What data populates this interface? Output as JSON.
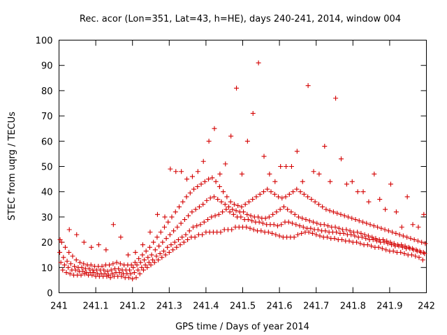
{
  "chart_data": {
    "type": "scatter",
    "title": "Rec. acor (Lon=351, Lat=43, h=HE), days 240-241, 2014, window 004",
    "xlabel": "GPS time / Days of year 2014",
    "ylabel": "STEC from uqrg / TECUs",
    "xlim": [
      241,
      242
    ],
    "ylim": [
      0,
      100
    ],
    "xticks": [
      241,
      241.1,
      241.2,
      241.3,
      241.4,
      241.5,
      241.6,
      241.7,
      241.8,
      241.9,
      242
    ],
    "xtick_labels": [
      "241",
      "241.1",
      "241.2",
      "241.3",
      "241.4",
      "241.5",
      "241.6",
      "241.7",
      "241.8",
      "241.9",
      "242"
    ],
    "yticks": [
      0,
      10,
      20,
      30,
      40,
      50,
      60,
      70,
      80,
      90,
      100
    ],
    "ytick_labels": [
      "0",
      "10",
      "20",
      "30",
      "40",
      "50",
      "60",
      "70",
      "80",
      "90",
      "100"
    ],
    "marker": "plus",
    "color": "#d40000",
    "grid": false,
    "series": [
      {
        "x": [
          241.01,
          241.02,
          241.03,
          241.04,
          241.05,
          241.06,
          241.07,
          241.08,
          241.09,
          241.1,
          241.11,
          241.12,
          241.13,
          241.14,
          241.15,
          241.16,
          241.17,
          241.18,
          241.19,
          241.2,
          241.21,
          241.22,
          241.23,
          241.24,
          241.25,
          241.26,
          241.27,
          241.28,
          241.29,
          241.3,
          241.31,
          241.32,
          241.33,
          241.34,
          241.35,
          241.36,
          241.37,
          241.38,
          241.39,
          241.4,
          241.41,
          241.42,
          241.43,
          241.44,
          241.45,
          241.46,
          241.47,
          241.48,
          241.49,
          241.5,
          241.51,
          241.52,
          241.53,
          241.54,
          241.55,
          241.56,
          241.57,
          241.58,
          241.59,
          241.6,
          241.61,
          241.62,
          241.63,
          241.64,
          241.65,
          241.66,
          241.67,
          241.68,
          241.69,
          241.7,
          241.71,
          241.72,
          241.73,
          241.74,
          241.75,
          241.76,
          241.77,
          241.78,
          241.79,
          241.8,
          241.81,
          241.82,
          241.83,
          241.84,
          241.85,
          241.86,
          241.87,
          241.88,
          241.89,
          241.9,
          241.91,
          241.92,
          241.93,
          241.94,
          241.95,
          241.96,
          241.97,
          241.98,
          241.99
        ],
        "y": [
          9,
          8,
          7.5,
          7,
          7,
          7,
          7.5,
          7,
          7,
          6.5,
          6.5,
          6.5,
          6.5,
          6,
          6.5,
          6.5,
          6.5,
          6,
          6,
          5.5,
          6,
          7.5,
          9,
          10,
          11,
          12,
          13,
          14,
          15,
          16,
          17,
          18,
          19,
          20,
          21,
          22,
          22,
          23,
          23,
          24,
          24,
          24,
          24,
          24,
          25,
          25,
          25,
          26,
          26,
          26,
          26,
          25.5,
          25,
          24.5,
          24.5,
          24,
          24,
          23.5,
          23,
          22.5,
          22,
          22,
          22,
          22,
          23,
          23.5,
          24,
          24,
          23.5,
          23,
          22.5,
          22,
          22,
          21.5,
          21.5,
          21,
          21,
          20.5,
          20.5,
          20,
          20,
          19.5,
          19,
          19,
          18.5,
          18,
          18,
          17.5,
          17,
          16.5,
          16.5,
          16,
          16,
          15.5,
          15,
          15,
          14.5,
          14,
          13
        ]
      },
      {
        "x": [
          241.005,
          241.015,
          241.025,
          241.035,
          241.045,
          241.055,
          241.065,
          241.075,
          241.085,
          241.095,
          241.105,
          241.115,
          241.125,
          241.135,
          241.145,
          241.155,
          241.165,
          241.175,
          241.185,
          241.195,
          241.205,
          241.215,
          241.225,
          241.235,
          241.245,
          241.255,
          241.265,
          241.275,
          241.285,
          241.295,
          241.305,
          241.315,
          241.325,
          241.335,
          241.345,
          241.355,
          241.365,
          241.375,
          241.385,
          241.395,
          241.405,
          241.415,
          241.425,
          241.435,
          241.445,
          241.455,
          241.465,
          241.475,
          241.485,
          241.495,
          241.505,
          241.515,
          241.525,
          241.535,
          241.545,
          241.555,
          241.565,
          241.575,
          241.585,
          241.595,
          241.605,
          241.615,
          241.625,
          241.635,
          241.645,
          241.655,
          241.665,
          241.675,
          241.685,
          241.695,
          241.705,
          241.715,
          241.725,
          241.735,
          241.745,
          241.755,
          241.765,
          241.775,
          241.785,
          241.795,
          241.805,
          241.815,
          241.825,
          241.835,
          241.845,
          241.855,
          241.865,
          241.875,
          241.885,
          241.895,
          241.905,
          241.915,
          241.925,
          241.935,
          241.945,
          241.955,
          241.965,
          241.975,
          241.985,
          241.995
        ],
        "y": [
          12,
          11,
          10,
          9,
          9,
          8.5,
          8.5,
          8,
          8,
          8,
          7.5,
          7.5,
          7.5,
          7,
          7.5,
          8,
          8,
          7.5,
          7.5,
          7.5,
          8,
          9,
          10,
          11,
          12,
          13,
          14.5,
          15.5,
          16.5,
          18,
          19,
          20,
          21,
          22,
          23,
          24.5,
          26,
          26.5,
          27,
          28,
          29,
          30,
          30.5,
          31,
          32,
          33,
          32,
          31,
          30,
          30,
          29,
          29,
          28.5,
          28,
          28,
          27.5,
          27,
          27,
          27,
          26.5,
          27,
          28,
          28,
          27.5,
          27,
          26.5,
          26,
          25.5,
          25.5,
          25,
          25,
          24.5,
          24.5,
          24,
          24,
          24,
          23.5,
          23.5,
          23,
          23,
          22.5,
          22,
          22,
          21.5,
          21,
          21,
          20.5,
          20,
          20,
          19.5,
          19,
          18.5,
          18.5,
          18,
          17.5,
          17.5,
          17,
          16.5,
          16,
          15.5
        ]
      },
      {
        "x": [
          241.002,
          241.012,
          241.022,
          241.032,
          241.042,
          241.052,
          241.062,
          241.072,
          241.082,
          241.092,
          241.102,
          241.112,
          241.122,
          241.132,
          241.142,
          241.152,
          241.162,
          241.172,
          241.182,
          241.192,
          241.202,
          241.212,
          241.222,
          241.232,
          241.242,
          241.252,
          241.262,
          241.272,
          241.282,
          241.292,
          241.302,
          241.312,
          241.322,
          241.332,
          241.342,
          241.352,
          241.362,
          241.372,
          241.382,
          241.392,
          241.402,
          241.412,
          241.422,
          241.432,
          241.442,
          241.452,
          241.462,
          241.472,
          241.482,
          241.492,
          241.502,
          241.512,
          241.522,
          241.532,
          241.542,
          241.552,
          241.562,
          241.572,
          241.582,
          241.592,
          241.602,
          241.612,
          241.622,
          241.632,
          241.642,
          241.652,
          241.662,
          241.672,
          241.682,
          241.692,
          241.702,
          241.712,
          241.722,
          241.732,
          241.742,
          241.752,
          241.762,
          241.772,
          241.782,
          241.792,
          241.802,
          241.812,
          241.822,
          241.832,
          241.842,
          241.852,
          241.862,
          241.872,
          241.882,
          241.892,
          241.902,
          241.912,
          241.922,
          241.932,
          241.942,
          241.952,
          241.962,
          241.972,
          241.982,
          241.992
        ],
        "y": [
          16,
          14,
          12.5,
          11.5,
          10.5,
          10,
          10,
          9.5,
          9.5,
          9,
          9,
          9,
          9,
          8.5,
          9,
          9.5,
          9.5,
          9,
          9,
          9,
          10,
          11,
          12,
          13,
          14,
          15,
          17,
          18.5,
          20,
          21.5,
          23,
          24.5,
          26,
          27.5,
          29,
          30.5,
          32,
          33,
          34,
          35,
          36.5,
          37.5,
          38,
          37,
          36,
          35,
          34,
          33,
          32.5,
          32,
          32,
          31,
          30.5,
          30,
          30,
          29.5,
          29.5,
          30,
          31,
          32,
          33,
          34,
          33,
          32,
          31,
          30,
          29.5,
          29,
          28.5,
          28,
          27.5,
          27,
          27,
          26.5,
          26,
          26,
          25.5,
          25,
          25,
          24.5,
          24,
          24,
          23.5,
          23,
          22.5,
          22,
          21.5,
          21,
          21,
          20.5,
          20,
          19.5,
          19,
          19,
          18.5,
          18,
          17.5,
          17,
          16.5,
          16
        ]
      },
      {
        "x": [
          241.007,
          241.017,
          241.027,
          241.037,
          241.047,
          241.057,
          241.067,
          241.077,
          241.087,
          241.097,
          241.107,
          241.117,
          241.127,
          241.137,
          241.147,
          241.157,
          241.167,
          241.177,
          241.187,
          241.197,
          241.207,
          241.217,
          241.227,
          241.237,
          241.247,
          241.257,
          241.267,
          241.277,
          241.287,
          241.297,
          241.307,
          241.317,
          241.327,
          241.337,
          241.347,
          241.357,
          241.367,
          241.377,
          241.387,
          241.397,
          241.407,
          241.417,
          241.427,
          241.437,
          241.447,
          241.457,
          241.467,
          241.477,
          241.487,
          241.497,
          241.507,
          241.517,
          241.527,
          241.537,
          241.547,
          241.557,
          241.567,
          241.577,
          241.587,
          241.597,
          241.607,
          241.617,
          241.627,
          241.637,
          241.647,
          241.657,
          241.667,
          241.677,
          241.687,
          241.697,
          241.707,
          241.717,
          241.727,
          241.737,
          241.747,
          241.757,
          241.767,
          241.777,
          241.787,
          241.797,
          241.807,
          241.817,
          241.827,
          241.837,
          241.847,
          241.857,
          241.867,
          241.877,
          241.887,
          241.897,
          241.907,
          241.917,
          241.927,
          241.937,
          241.947,
          241.957,
          241.967,
          241.977,
          241.987,
          241.997
        ],
        "y": [
          20,
          18,
          16,
          14.5,
          13,
          12,
          11.5,
          11,
          11,
          10.5,
          10.5,
          10.5,
          11,
          11,
          11.5,
          12,
          11.5,
          11,
          11,
          11,
          12,
          13.5,
          15,
          16.5,
          18,
          20,
          22,
          24,
          26,
          28,
          30,
          32,
          34,
          36,
          38,
          39.5,
          41,
          42,
          43,
          44,
          45,
          45.5,
          44,
          42,
          40,
          38,
          36,
          35,
          34.5,
          34,
          35,
          36,
          37,
          38,
          39,
          40,
          41,
          40,
          39,
          38,
          37.5,
          38,
          39,
          40,
          41,
          40,
          39,
          38,
          37,
          36,
          35,
          34,
          33,
          32.5,
          32,
          31.5,
          31,
          30.5,
          30,
          29.5,
          29,
          28.5,
          28,
          27.5,
          27,
          26.5,
          26,
          25.5,
          25,
          24.5,
          24,
          23.5,
          23,
          22.5,
          22,
          21.5,
          21,
          20.5,
          20,
          19.5
        ]
      },
      {
        "x": [
          241.003,
          241.028,
          241.048,
          241.068,
          241.088,
          241.108,
          241.128,
          241.148,
          241.168,
          241.188,
          241.208,
          241.228,
          241.248,
          241.268,
          241.288,
          241.303,
          241.318,
          241.333,
          241.348,
          241.363,
          241.378,
          241.393,
          241.408,
          241.423,
          241.438,
          241.453,
          241.468,
          241.483,
          241.498,
          241.513,
          241.528,
          241.543,
          241.558,
          241.573,
          241.588,
          241.603,
          241.618,
          241.633,
          241.648,
          241.663,
          241.678,
          241.693,
          241.708,
          241.723,
          241.738,
          241.753,
          241.768,
          241.783,
          241.798,
          241.813,
          241.828,
          241.843,
          241.858,
          241.873,
          241.888,
          241.903,
          241.918,
          241.933,
          241.948,
          241.963,
          241.978,
          241.993
        ],
        "y": [
          21,
          25,
          23,
          20,
          18,
          19,
          17,
          27,
          22,
          15,
          16,
          19,
          24,
          31,
          30,
          49,
          48,
          48,
          45,
          46,
          48,
          52,
          60,
          65,
          47,
          51,
          62,
          81,
          47,
          60,
          71,
          91,
          54,
          47,
          44,
          50,
          50,
          50,
          56,
          44,
          82,
          48,
          47,
          58,
          44,
          77,
          53,
          43,
          44,
          40,
          40,
          36,
          47,
          37,
          33,
          43,
          32,
          26,
          38,
          27,
          26,
          31
        ]
      }
    ]
  }
}
